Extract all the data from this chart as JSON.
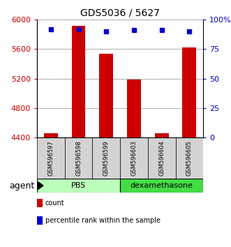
{
  "title": "GDS5036 / 5627",
  "samples": [
    "GSM596597",
    "GSM596598",
    "GSM596599",
    "GSM596603",
    "GSM596604",
    "GSM596605"
  ],
  "counts": [
    4460,
    5920,
    5540,
    5190,
    4460,
    5620
  ],
  "percentiles": [
    92,
    92,
    90,
    91,
    91,
    90
  ],
  "ylim_left": [
    4400,
    6000
  ],
  "ylim_right": [
    0,
    100
  ],
  "yticks_left": [
    4400,
    4800,
    5200,
    5600,
    6000
  ],
  "yticks_right": [
    0,
    25,
    50,
    75,
    100
  ],
  "ytick_labels_right": [
    "0",
    "25",
    "50",
    "75",
    "100%"
  ],
  "groups": [
    {
      "label": "PBS",
      "start": 0,
      "end": 3,
      "color": "#bbffbb"
    },
    {
      "label": "dexamethasone",
      "start": 3,
      "end": 6,
      "color": "#44dd44"
    }
  ],
  "bar_color": "#cc0000",
  "dot_color": "#0000cc",
  "bar_width": 0.5,
  "bar_baseline": 4400,
  "legend_items": [
    {
      "label": "count",
      "color": "#cc0000"
    },
    {
      "label": "percentile rank within the sample",
      "color": "#0000cc"
    }
  ],
  "agent_label": "agent",
  "left_tick_color": "#cc0000",
  "right_tick_color": "#0000cc",
  "title_color": "#000000"
}
